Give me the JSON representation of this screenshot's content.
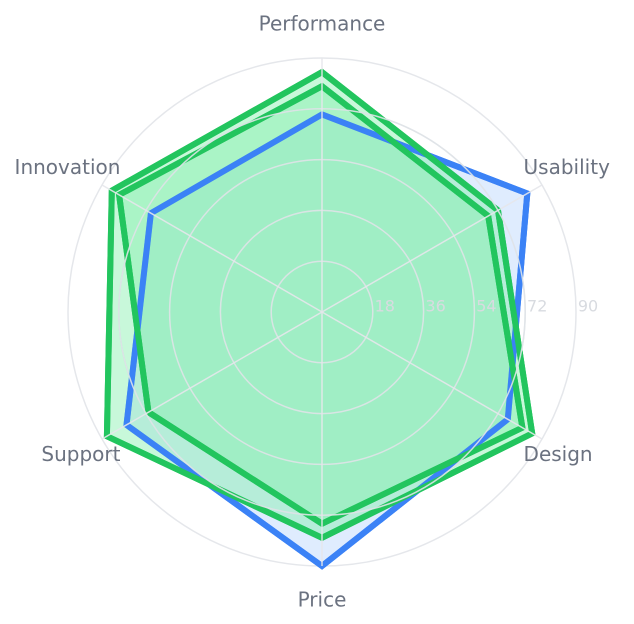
{
  "chart_data": {
    "type": "radar",
    "axes": [
      "Performance",
      "Usability",
      "Design",
      "Price",
      "Support",
      "Innovation"
    ],
    "rlim": [
      0,
      90
    ],
    "ticks": [
      18,
      36,
      54,
      72,
      90
    ],
    "tick_labels": [
      "18",
      "36",
      "54",
      "72",
      "90"
    ],
    "grid": true,
    "series": [
      {
        "color": "#3b82f6",
        "fill": "#dbeafe",
        "fill_opacity": 0.9,
        "values": [
          70,
          84,
          76,
          90,
          80,
          70
        ]
      },
      {
        "color": "#22c55e",
        "fill": "#86efac",
        "fill_opacity": 0.45,
        "values": [
          85,
          72,
          86,
          80,
          88,
          86
        ]
      },
      {
        "color": "#22c55e",
        "fill": "#86efac",
        "fill_opacity": 0.45,
        "values": [
          80,
          68,
          82,
          75,
          71,
          83
        ]
      }
    ]
  }
}
